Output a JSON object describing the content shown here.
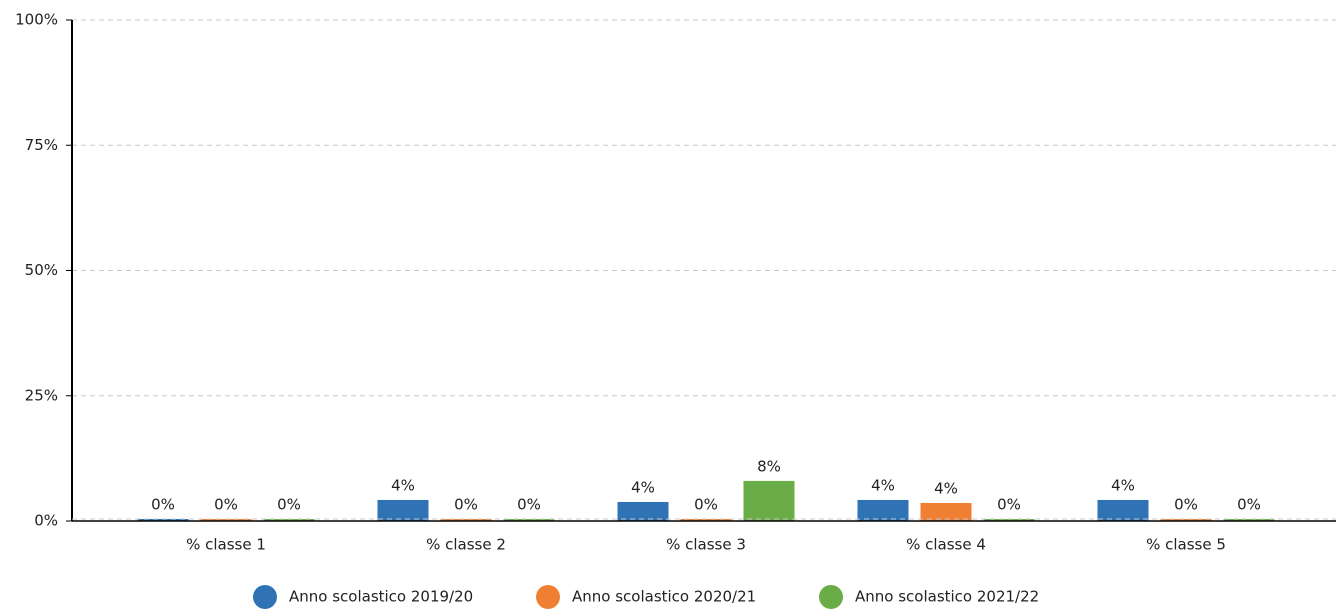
{
  "chart_data": {
    "type": "bar",
    "categories": [
      "% classe 1",
      "% classe 2",
      "% classe 3",
      "% classe 4",
      "% classe 5"
    ],
    "series": [
      {
        "name": "Anno scolastico 2019/20",
        "color": "#2f73b5",
        "values": [
          0,
          4.2,
          3.8,
          4.2,
          4.2
        ],
        "value_labels": [
          "0%",
          "4%",
          "4%",
          "4%",
          "4%"
        ]
      },
      {
        "name": "Anno scolastico 2020/21",
        "color": "#ee7f33",
        "values": [
          0,
          0,
          0,
          3.6,
          0
        ],
        "value_labels": [
          "0%",
          "0%",
          "0%",
          "4%",
          "0%"
        ]
      },
      {
        "name": "Anno scolastico 2021/22",
        "color": "#6aac45",
        "values": [
          0,
          0,
          8.0,
          0,
          0
        ],
        "value_labels": [
          "0%",
          "0%",
          "8%",
          "0%",
          "0%"
        ]
      }
    ],
    "ylim": [
      0,
      100
    ],
    "yticks": [
      {
        "value": 0,
        "label": "0%"
      },
      {
        "value": 25,
        "label": "25%"
      },
      {
        "value": 50,
        "label": "50%"
      },
      {
        "value": 75,
        "label": "75%"
      },
      {
        "value": 100,
        "label": "100%"
      }
    ],
    "grid": true,
    "legend": "bottom"
  }
}
